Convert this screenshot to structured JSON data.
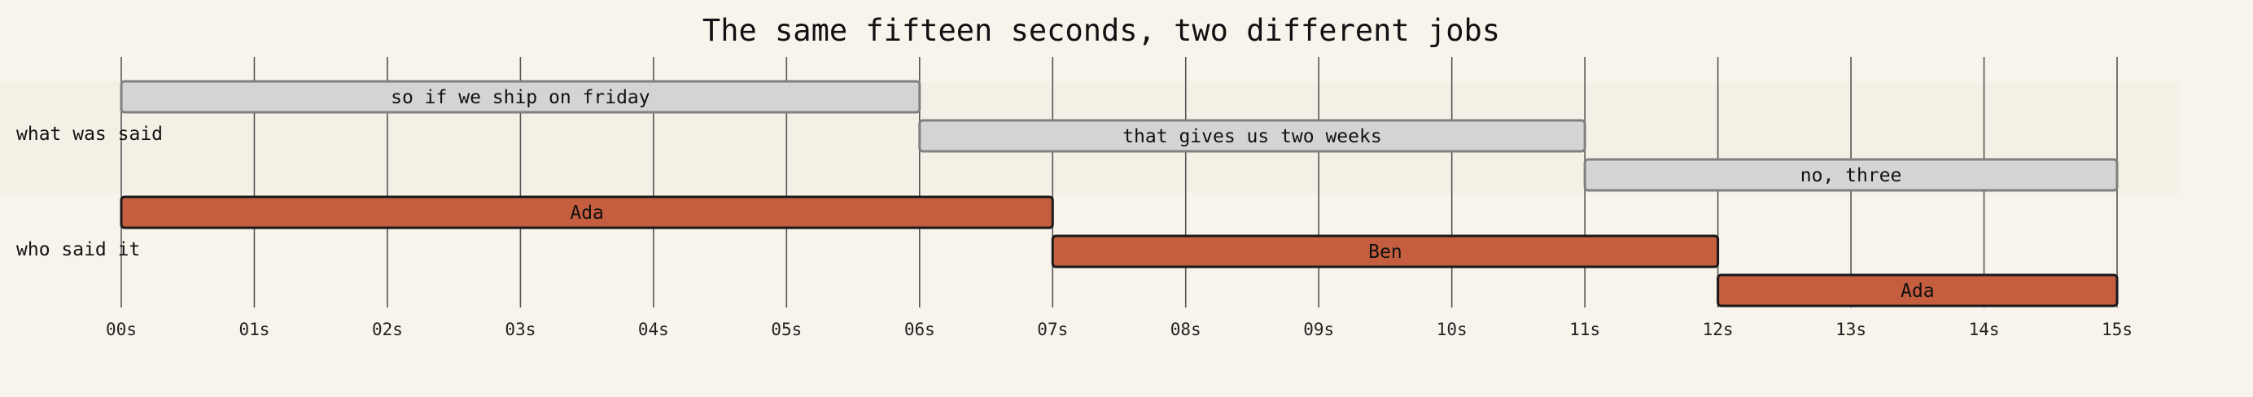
{
  "chart_data": {
    "type": "timeline",
    "title": "The same fifteen seconds, two different jobs",
    "x_unit": "s",
    "xlim": [
      0,
      15
    ],
    "x_ticks": [
      0,
      1,
      2,
      3,
      4,
      5,
      6,
      7,
      8,
      9,
      10,
      11,
      12,
      13,
      14,
      15
    ],
    "x_tick_labels": [
      "00s",
      "01s",
      "02s",
      "03s",
      "04s",
      "05s",
      "06s",
      "07s",
      "08s",
      "09s",
      "10s",
      "11s",
      "12s",
      "13s",
      "14s",
      "15s"
    ],
    "grid": true,
    "rows": [
      {
        "label": "what was said",
        "color": "#d4d4d4",
        "border": "#808080",
        "segments": [
          {
            "label": "so if we ship on friday",
            "start": 0,
            "end": 6,
            "lane": 0
          },
          {
            "label": "that gives us two weeks",
            "start": 6,
            "end": 11,
            "lane": 1
          },
          {
            "label": "no, three",
            "start": 11,
            "end": 15,
            "lane": 2
          }
        ]
      },
      {
        "label": "who said it",
        "color": "#c45e3f",
        "border": "#1a1a1a",
        "segments": [
          {
            "label": "Ada",
            "start": 0,
            "end": 7,
            "lane": 0
          },
          {
            "label": "Ben",
            "start": 7,
            "end": 12,
            "lane": 1
          },
          {
            "label": "Ada",
            "start": 12,
            "end": 15,
            "lane": 2
          }
        ]
      }
    ]
  }
}
